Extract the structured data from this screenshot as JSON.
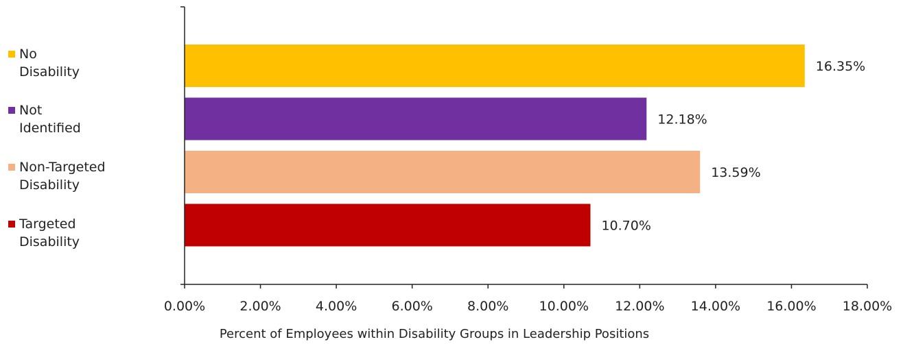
{
  "chart_data": {
    "type": "bar",
    "orientation": "horizontal",
    "categories": [
      "No Disability",
      "Not Identified",
      "Non-Targeted Disability",
      "Targeted Disability"
    ],
    "legend_labels": [
      "No\nDisability",
      "Not\nIdentified",
      "Non-Targeted\nDisability",
      "Targeted\nDisability"
    ],
    "values": [
      16.35,
      12.18,
      13.59,
      10.7
    ],
    "data_labels": [
      "16.35%",
      "12.18%",
      "13.59%",
      "10.70%"
    ],
    "colors": [
      "#FFC000",
      "#7030A0",
      "#F4B183",
      "#C00000"
    ],
    "xlabel": "Percent of Employees within Disability Groups in Leadership Positions",
    "ylabel": "",
    "xlim": [
      0,
      18
    ],
    "xticks": [
      0,
      2,
      4,
      6,
      8,
      10,
      12,
      14,
      16,
      18
    ],
    "xtick_labels": [
      "0.00%",
      "2.00%",
      "4.00%",
      "6.00%",
      "8.00%",
      "10.00%",
      "12.00%",
      "14.00%",
      "16.00%",
      "18.00%"
    ],
    "grid": false,
    "legend_position": "left"
  }
}
